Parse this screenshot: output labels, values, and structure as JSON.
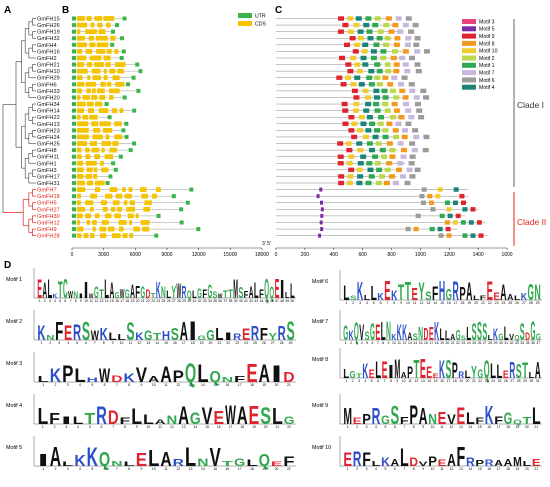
{
  "panels": {
    "a": "A",
    "b": "B",
    "c": "C",
    "d": "D"
  },
  "genes": [
    "GmFH15",
    "GmFH26",
    "GmFH19",
    "GmFH32",
    "GmFH4",
    "GmFH16",
    "GmFH2",
    "GmFH21",
    "GmFH10",
    "GmFH29",
    "GmFH6",
    "GmFH33",
    "GmFH20",
    "GmFH34",
    "GmFH14",
    "GmFH22",
    "GmFH13",
    "GmFH23",
    "GmFH24",
    "GmFH25",
    "GmFH8",
    "GmFH11",
    "GmFH1",
    "GmFH3",
    "GmFH17",
    "GmFH31",
    "GmFH7",
    "GmFH18",
    "GmFH5",
    "GmFH27",
    "GmFH30",
    "GmFH12",
    "GmFH9",
    "GmFH28"
  ],
  "clade2_start_index": 26,
  "colors": {
    "clade1_text": "#111111",
    "clade2_text": "#e2231a",
    "utr": "#3ab54a",
    "cds": "#f5c400",
    "tree_black": "#555555",
    "tree_red": "#e2231a",
    "motif": [
      "#e9417d",
      "#7d2aa6",
      "#e0242f",
      "#f39a1e",
      "#f2cb2e",
      "#bdd84a",
      "#2fa84f",
      "#c7b7dd",
      "#9b9b9b",
      "#1a8478"
    ]
  },
  "panel_b": {
    "legend": [
      {
        "label": "UTR",
        "color": "#3ab54a"
      },
      {
        "label": "CDS",
        "color": "#f5c400"
      }
    ],
    "axis_ticks": [
      "0",
      "3000",
      "6000",
      "9000",
      "12000",
      "15000",
      "18000"
    ],
    "strand_label": "3'  5'"
  },
  "panel_c": {
    "legend": [
      {
        "label": "Motif 3",
        "color": "#e9417d"
      },
      {
        "label": "Motif 5",
        "color": "#7d2aa6"
      },
      {
        "label": "Motif 9",
        "color": "#e0242f"
      },
      {
        "label": "Motif 8",
        "color": "#f39a1e"
      },
      {
        "label": "Motif 10",
        "color": "#f2cb2e"
      },
      {
        "label": "Motif 2",
        "color": "#bdd84a"
      },
      {
        "label": "Motif 1",
        "color": "#2fa84f"
      },
      {
        "label": "Motif 7",
        "color": "#c7b7dd"
      },
      {
        "label": "Motif 6",
        "color": "#9b9b9b"
      },
      {
        "label": "Motif 4",
        "color": "#1a8478"
      }
    ],
    "axis_ticks": [
      "0",
      "200",
      "400",
      "600",
      "800",
      "1000",
      "1200",
      "1400",
      "1600"
    ],
    "clade1": "Clade I",
    "clade2": "Clade II"
  },
  "panel_d": {
    "motifs": [
      {
        "title": "Motif 1",
        "positions": 50,
        "seq": "EALKTCWNIIWGTLAGWGAFGDTKNLYWRQLGFGSWTTMSFALFQQEILL",
        "col": 0
      },
      {
        "title": "Motif 2",
        "positions": 29,
        "seq": "KNFERSWKLLSKGTHSAIGGLIRERFYRS",
        "col": 0
      },
      {
        "title": "Motif 3",
        "positions": 21,
        "seq": "LKPLHWDKVAAPQLQNFEAID",
        "col": 0
      },
      {
        "title": "Motif 4",
        "positions": 22,
        "seq": "LFILTRDFLLANAGVEWAESLG",
        "col": 0
      },
      {
        "title": "Motif 5",
        "positions": 21,
        "seq": "IALKKQNLELARLNVTGLQEF",
        "col": 0
      },
      {
        "title": "Motif 6",
        "positions": 29,
        "seq": "LSKLLKEKTTEYSFHGRPALFEEAALKGN",
        "col": 1
      },
      {
        "title": "Motif 7",
        "positions": 37,
        "seq": "GKQVSGELNKKKASNDEKLLAGSLSSSLKGLVQSDGG",
        "col": 1
      },
      {
        "title": "Motif 8",
        "positions": 31,
        "seq": "LGTKELEIMAPTEEEKSPRLYGQLLERSTLA",
        "col": 1
      },
      {
        "title": "Motif 9",
        "positions": 21,
        "seq": "MEPRGSFPANEVELFKFGQTL",
        "col": 1
      },
      {
        "title": "Motif 10",
        "positions": 21,
        "seq": "ERFLKALDVPEAFRPRAAMLE",
        "col": 1
      }
    ]
  }
}
